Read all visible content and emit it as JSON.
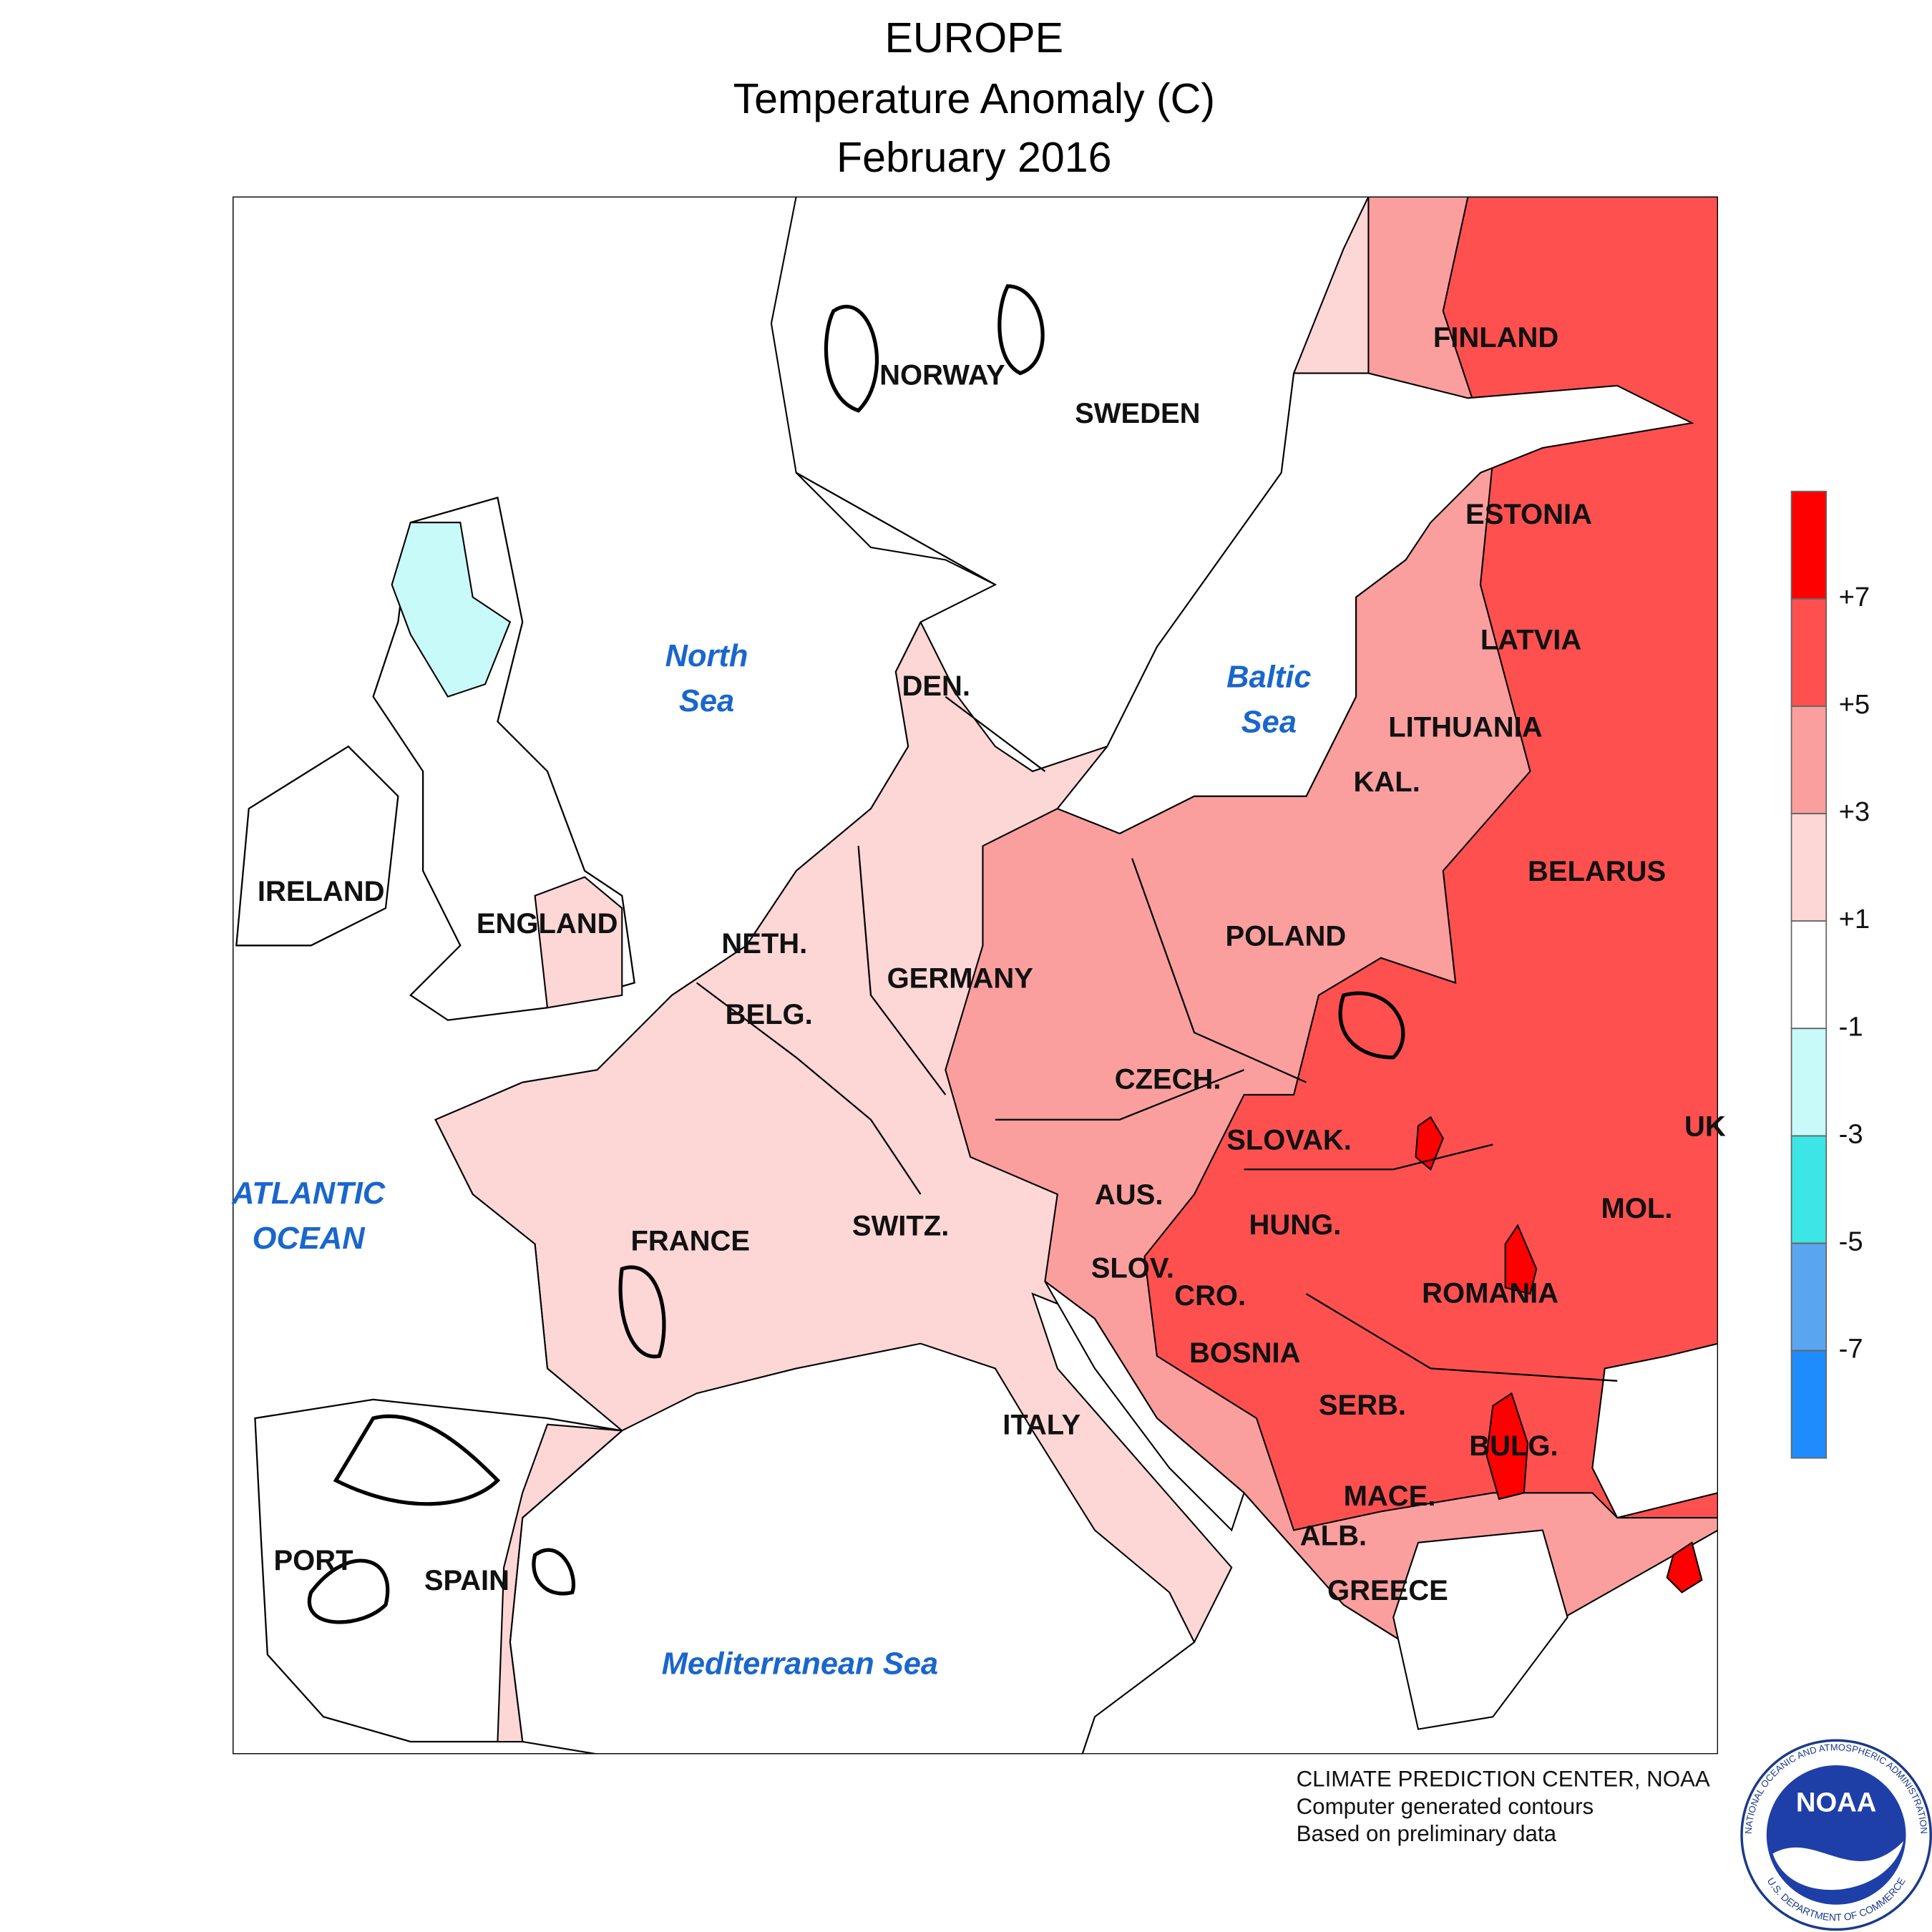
{
  "header": {
    "title": "EUROPE",
    "subtitle": "Temperature Anomaly (C)",
    "date": "February 2016"
  },
  "map": {
    "countries": [
      "NORWAY",
      "SWEDEN",
      "FINLAND",
      "ESTONIA",
      "LATVIA",
      "LITHUANIA",
      "KAL.",
      "BELARUS",
      "POLAND",
      "DEN.",
      "NETH.",
      "BELG.",
      "GERMANY",
      "CZECH.",
      "SLOVAK.",
      "AUS.",
      "HUNG.",
      "SWITZ.",
      "FRANCE",
      "SLOV.",
      "CRO.",
      "ROMANIA",
      "MOL.",
      "UK",
      "BOSNIA",
      "SERB.",
      "BULG.",
      "ITALY",
      "MACE.",
      "ALB.",
      "GREECE",
      "IRELAND",
      "ENGLAND",
      "PORT",
      "SPAIN"
    ],
    "seas": [
      {
        "lines": [
          "North",
          "Sea"
        ]
      },
      {
        "lines": [
          "Baltic",
          "Sea"
        ]
      },
      {
        "lines": [
          "ATLANTIC",
          "OCEAN"
        ]
      },
      {
        "lines": [
          "Mediterranean Sea"
        ]
      }
    ]
  },
  "colorbar": {
    "range": [
      -9,
      9
    ],
    "colors": [
      "#1e8cff",
      "#5aa5f0",
      "#3ce6e6",
      "#c8fafa",
      "#ffffff",
      "#fdd6d6",
      "#fa9e9e",
      "#ff5050",
      "#ff0000"
    ],
    "ticks": [
      {
        "value": -7,
        "label": "-7"
      },
      {
        "value": -5,
        "label": "-5"
      },
      {
        "value": -3,
        "label": "-3"
      },
      {
        "value": -1,
        "label": "-1"
      },
      {
        "value": 1,
        "label": "+1"
      },
      {
        "value": 3,
        "label": "+3"
      },
      {
        "value": 5,
        "label": "+5"
      },
      {
        "value": 7,
        "label": "+7"
      }
    ]
  },
  "credits": [
    "CLIMATE PREDICTION CENTER, NOAA",
    "Computer generated contours",
    "Based on preliminary data"
  ],
  "logo": {
    "text": "NOAA",
    "ring_top": "NATIONAL OCEANIC AND ATMOSPHERIC ADMINISTRATION",
    "ring_bottom": "U.S. DEPARTMENT OF COMMERCE"
  }
}
